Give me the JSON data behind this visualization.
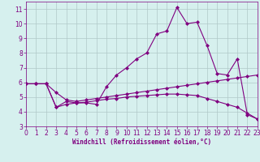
{
  "line1_x": [
    0,
    1,
    2,
    3,
    4,
    5,
    6,
    7,
    8,
    9,
    10,
    11,
    12,
    13,
    14,
    15,
    16,
    17,
    18,
    19,
    20,
    21,
    22,
    23
  ],
  "line1_y": [
    5.9,
    5.9,
    5.9,
    4.3,
    4.7,
    4.6,
    4.6,
    4.5,
    5.7,
    6.5,
    7.0,
    7.6,
    8.0,
    9.3,
    9.5,
    11.1,
    10.0,
    10.1,
    8.5,
    6.6,
    6.5,
    7.6,
    3.8,
    3.5
  ],
  "line2_x": [
    0,
    1,
    2,
    3,
    4,
    5,
    6,
    7,
    8,
    9,
    10,
    11,
    12,
    13,
    14,
    15,
    16,
    17,
    18,
    19,
    20,
    21,
    22,
    23
  ],
  "line2_y": [
    5.9,
    5.9,
    5.9,
    5.3,
    4.8,
    4.7,
    4.8,
    4.9,
    5.0,
    5.1,
    5.2,
    5.3,
    5.4,
    5.5,
    5.6,
    5.7,
    5.8,
    5.9,
    6.0,
    6.1,
    6.2,
    6.3,
    6.4,
    6.5
  ],
  "line3_x": [
    0,
    1,
    2,
    3,
    4,
    5,
    6,
    7,
    8,
    9,
    10,
    11,
    12,
    13,
    14,
    15,
    16,
    17,
    18,
    19,
    20,
    21,
    22,
    23
  ],
  "line3_y": [
    5.9,
    5.9,
    5.9,
    4.3,
    4.5,
    4.6,
    4.65,
    4.75,
    4.85,
    4.9,
    5.0,
    5.05,
    5.1,
    5.15,
    5.2,
    5.2,
    5.15,
    5.1,
    4.9,
    4.7,
    4.5,
    4.3,
    3.9,
    3.5
  ],
  "line_color": "#800080",
  "marker": "D",
  "marker_size": 2,
  "bg_color": "#d6f0ee",
  "grid_color": "#b0c8c8",
  "xlabel": "Windchill (Refroidissement éolien,°C)",
  "ylabel": "",
  "xlim": [
    0,
    23
  ],
  "ylim": [
    3.0,
    11.5
  ],
  "yticks": [
    3,
    4,
    5,
    6,
    7,
    8,
    9,
    10,
    11
  ],
  "xticks": [
    0,
    1,
    2,
    3,
    4,
    5,
    6,
    7,
    8,
    9,
    10,
    11,
    12,
    13,
    14,
    15,
    16,
    17,
    18,
    19,
    20,
    21,
    22,
    23
  ],
  "axis_fontsize": 5.5,
  "tick_fontsize": 5.5
}
